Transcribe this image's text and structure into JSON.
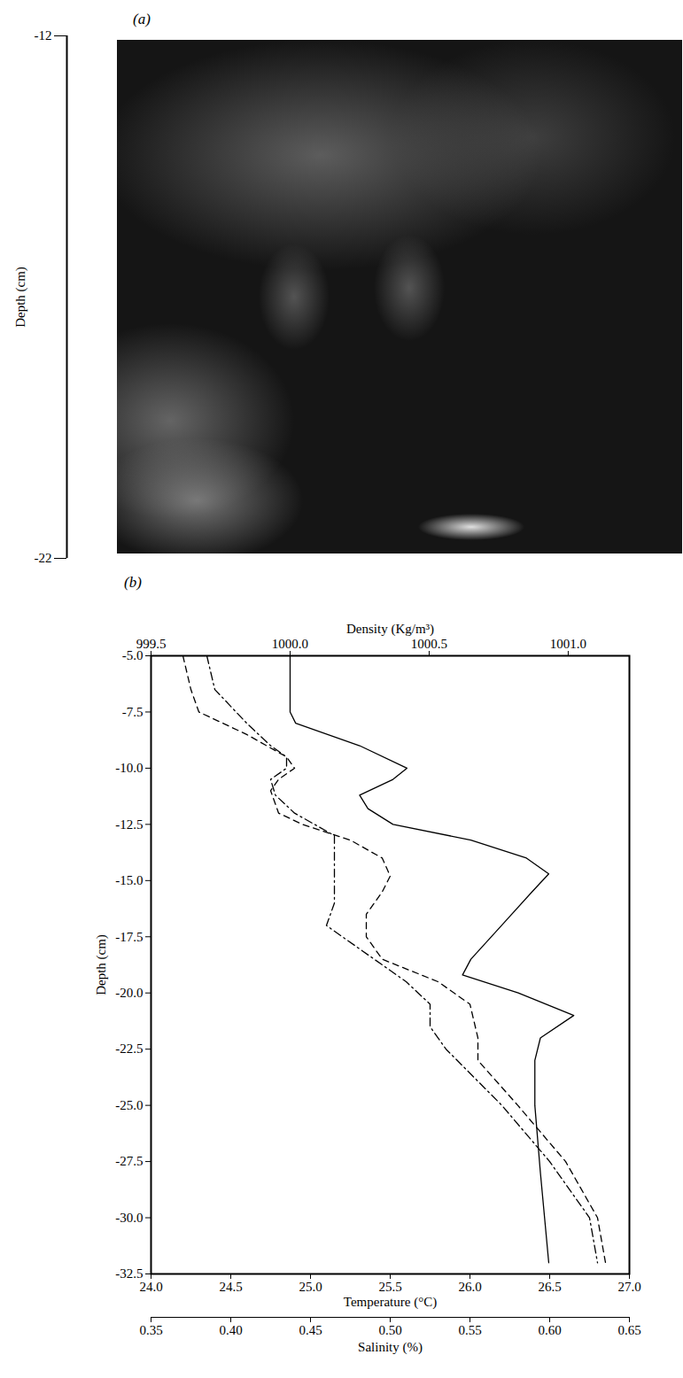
{
  "chart_data": [
    {
      "type": "image",
      "title": "(a)",
      "ylabel": "Depth (cm)",
      "ylim": [
        -22,
        -12
      ],
      "yticks": [
        -12,
        -22
      ]
    },
    {
      "type": "line",
      "title": "(b)",
      "ylabel": "Depth (cm)",
      "ylim": [
        -32.5,
        -5
      ],
      "yticks": [
        {
          "value": -5,
          "label": "-5.0"
        },
        {
          "value": -7.5,
          "label": "-7.5"
        },
        {
          "value": -10,
          "label": "-10.0"
        },
        {
          "value": -12.5,
          "label": "-12.5"
        },
        {
          "value": -15,
          "label": "-15.0"
        },
        {
          "value": -17.5,
          "label": "-17.5"
        },
        {
          "value": -20,
          "label": "-20.0"
        },
        {
          "value": -22.5,
          "label": "-22.5"
        },
        {
          "value": -25,
          "label": "-25.0"
        },
        {
          "value": -27.5,
          "label": "-27.5"
        },
        {
          "value": -30,
          "label": "-30.0"
        },
        {
          "value": -32.5,
          "label": "-32.5"
        }
      ],
      "axes": {
        "density": {
          "label": "Density (Kg/m³)",
          "xlim": [
            999.5,
            1001.22
          ],
          "xticks": [
            {
              "value": 999.5,
              "label": "999.5"
            },
            {
              "value": 1000,
              "label": "1000.0"
            },
            {
              "value": 1000.5,
              "label": "1000.5"
            },
            {
              "value": 1001,
              "label": "1001.0"
            }
          ]
        },
        "temperature": {
          "label": "Temperature (°C)",
          "xlim": [
            24,
            27
          ],
          "xticks": [
            {
              "value": 24,
              "label": "24.0"
            },
            24.5,
            {
              "value": 25,
              "label": "25.0"
            },
            25.5,
            {
              "value": 26,
              "label": "26.0"
            },
            26.5,
            {
              "value": 27,
              "label": "27.0"
            }
          ]
        },
        "salinity": {
          "label": "Salinity (%)",
          "xlim": [
            0.35,
            0.65
          ],
          "xticks": [
            0.35,
            {
              "value": 0.4,
              "label": "0.40"
            },
            0.45,
            {
              "value": 0.5,
              "label": "0.50"
            },
            0.55,
            {
              "value": 0.6,
              "label": "0.60"
            },
            0.65
          ]
        }
      },
      "series": [
        {
          "axis": "density",
          "color": "#000000",
          "line_style": "solid",
          "y": [
            -5,
            -7.5,
            -8,
            -9,
            -10,
            -10.5,
            -11.2,
            -11.8,
            -12.5,
            -13.2,
            -14,
            -14.7,
            -15.5,
            -17,
            -18.5,
            -19.2,
            -20,
            -21,
            -22,
            -23,
            -25,
            -28,
            -32
          ],
          "x": [
            1000.0,
            1000.0,
            1000.02,
            1000.25,
            1000.42,
            1000.37,
            1000.25,
            1000.28,
            1000.37,
            1000.65,
            1000.85,
            1000.93,
            1000.87,
            1000.76,
            1000.65,
            1000.62,
            1000.82,
            1001.02,
            1000.9,
            1000.88,
            1000.88,
            1000.9,
            1000.93
          ]
        },
        {
          "axis": "temperature",
          "color": "#000000",
          "line_style": "dashed",
          "y": [
            -5,
            -6.5,
            -7.5,
            -8.5,
            -9.5,
            -10,
            -10.5,
            -11,
            -12,
            -12.5,
            -13.2,
            -14,
            -14.8,
            -15.5,
            -16.5,
            -17.5,
            -18.5,
            -19.5,
            -20.5,
            -22,
            -23,
            -25,
            -27.5,
            -30,
            -32
          ],
          "x": [
            24.2,
            24.25,
            24.3,
            24.6,
            24.85,
            24.9,
            24.8,
            24.75,
            24.8,
            24.95,
            25.25,
            25.45,
            25.5,
            25.45,
            25.35,
            25.35,
            25.45,
            25.8,
            26.0,
            26.05,
            26.05,
            26.3,
            26.6,
            26.8,
            26.85
          ]
        },
        {
          "axis": "salinity",
          "color": "#000000",
          "line_style": "dashdot",
          "y": [
            -5,
            -6.5,
            -8,
            -9,
            -9.5,
            -10,
            -10.5,
            -11.2,
            -12,
            -13,
            -14,
            -16,
            -17,
            -18,
            -19.5,
            -20.5,
            -21.5,
            -22.5,
            -25,
            -27.5,
            -30,
            -32
          ],
          "x": [
            0.385,
            0.39,
            0.41,
            0.425,
            0.435,
            0.435,
            0.425,
            0.428,
            0.44,
            0.465,
            0.465,
            0.465,
            0.46,
            0.48,
            0.51,
            0.525,
            0.525,
            0.535,
            0.57,
            0.6,
            0.625,
            0.63
          ]
        }
      ]
    }
  ]
}
